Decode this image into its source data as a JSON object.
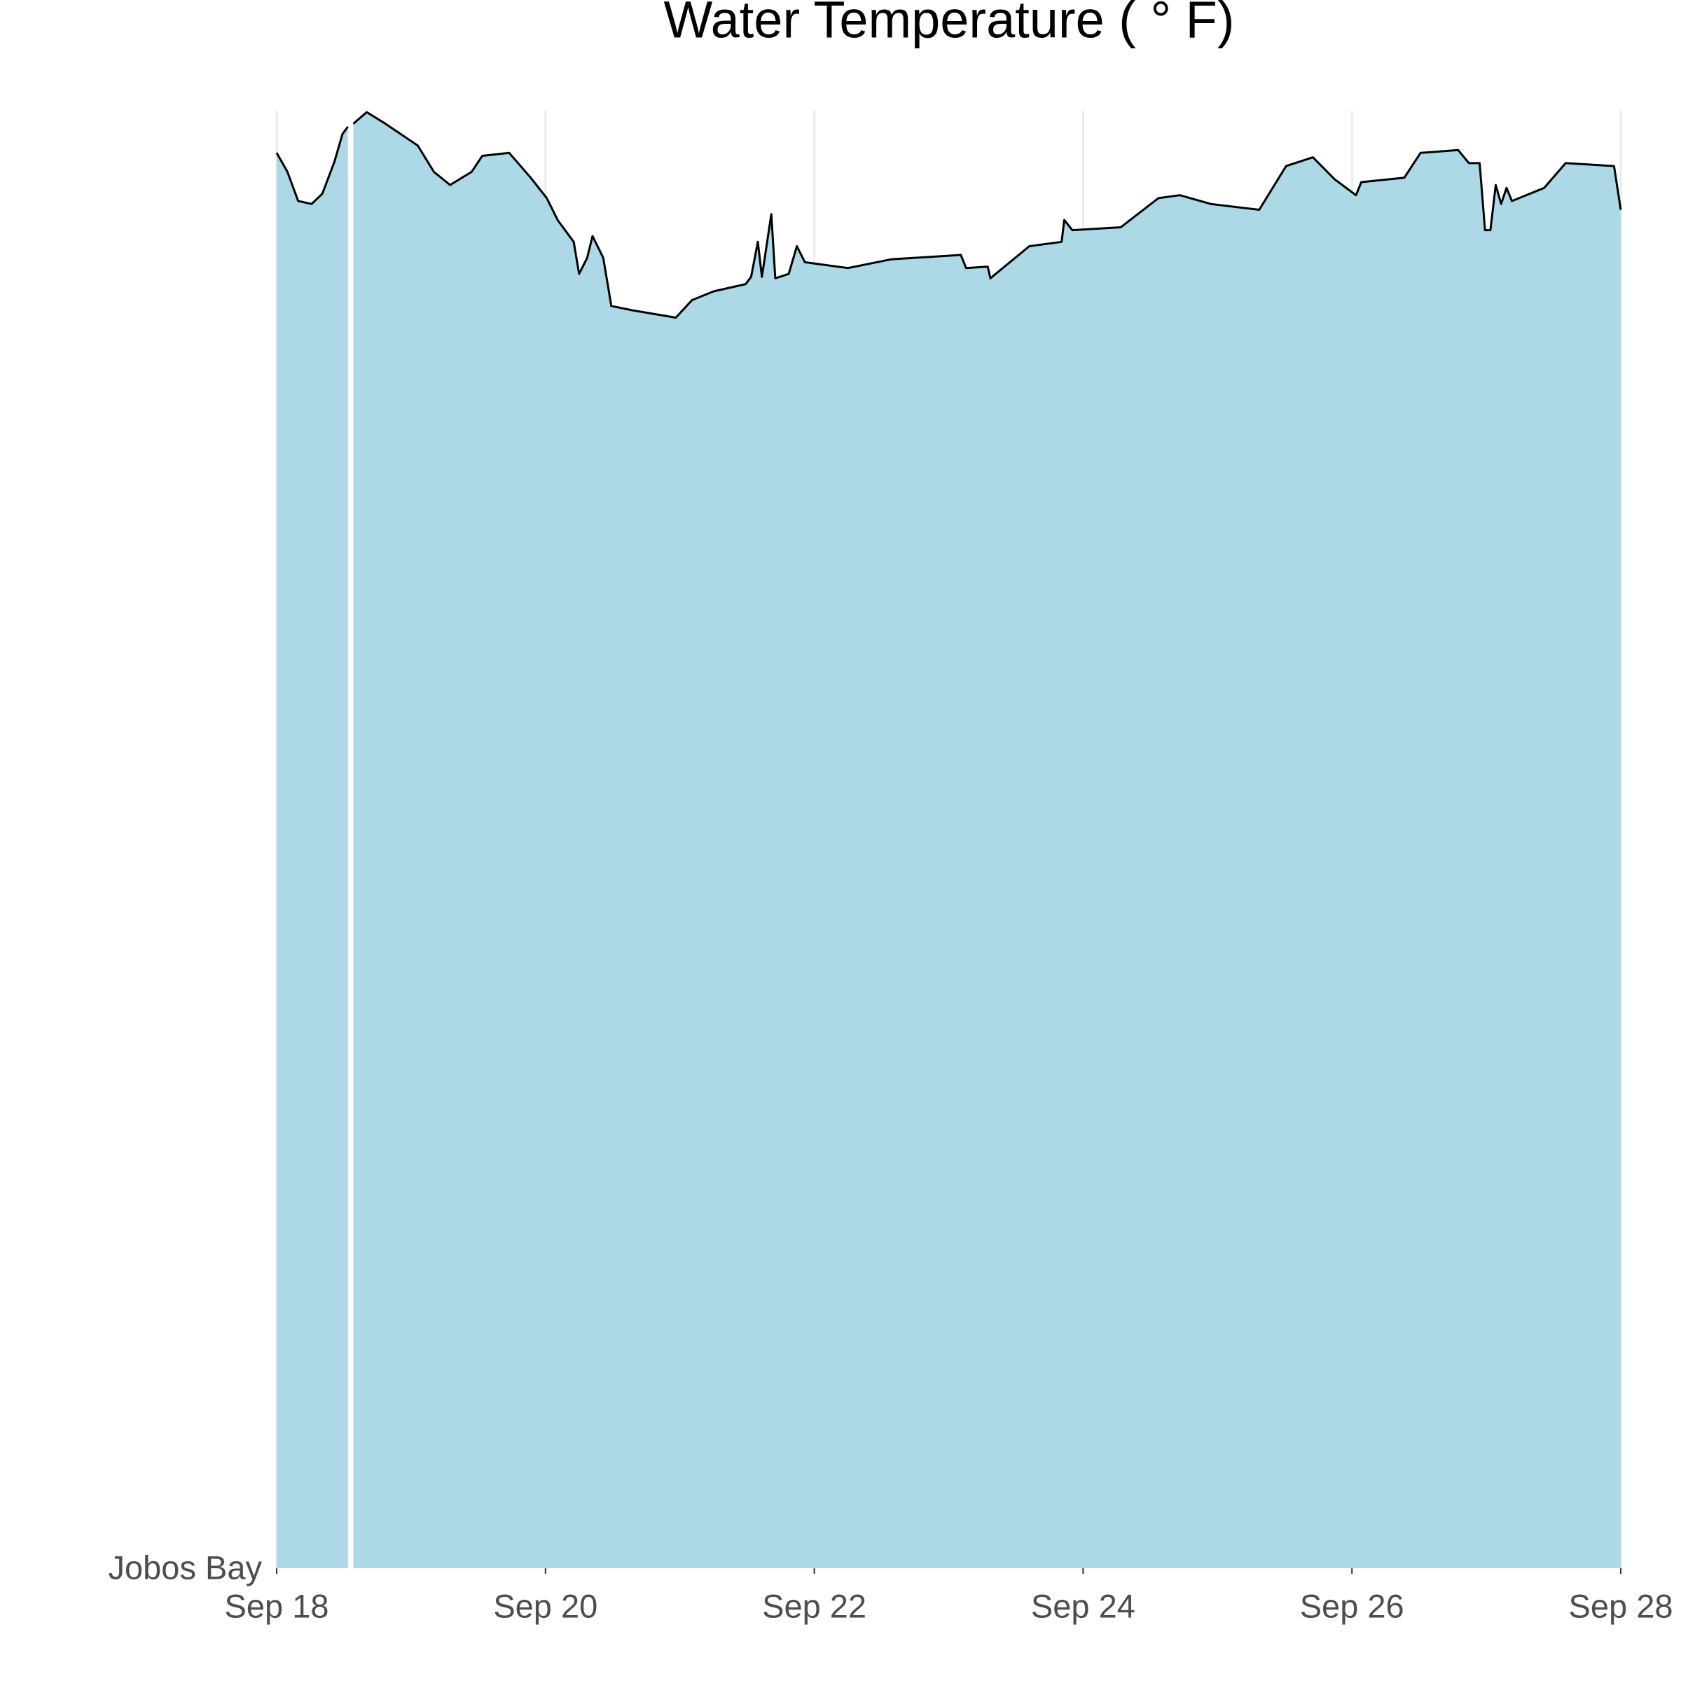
{
  "chart_data": {
    "type": "area",
    "title": "Water Temperature ( ° F)",
    "categories": [
      "Jobos Bay"
    ],
    "x": [
      18.0,
      18.08,
      18.16,
      18.26,
      18.34,
      18.43,
      18.49,
      18.53,
      18.55,
      18.57,
      18.67,
      18.81,
      19.05,
      19.17,
      19.29,
      19.45,
      19.53,
      19.73,
      19.89,
      20.01,
      20.09,
      20.21,
      20.25,
      20.31,
      20.35,
      20.43,
      20.49,
      20.65,
      20.97,
      21.09,
      21.25,
      21.49,
      21.53,
      21.58,
      21.61,
      21.68,
      21.71,
      21.81,
      21.87,
      21.93,
      22.25,
      22.57,
      23.09,
      23.13,
      23.29,
      23.31,
      23.6,
      23.84,
      23.86,
      23.92,
      24.28,
      24.56,
      24.72,
      24.95,
      25.31,
      25.51,
      25.71,
      25.87,
      26.03,
      26.07,
      26.39,
      26.51,
      26.79,
      26.87,
      26.95,
      26.99,
      27.03,
      27.07,
      27.11,
      27.15,
      27.19,
      27.43,
      27.59,
      27.95,
      28.0
    ],
    "values": [
      97.1,
      95.8,
      93.8,
      93.6,
      94.3,
      96.5,
      98.4,
      98.9,
      null,
      99.1,
      99.9,
      99.1,
      97.6,
      95.8,
      94.9,
      95.8,
      96.9,
      97.1,
      95.4,
      94.0,
      92.5,
      91.0,
      88.8,
      89.9,
      91.4,
      89.9,
      86.6,
      86.3,
      85.8,
      87.0,
      87.6,
      88.1,
      88.6,
      91.0,
      88.6,
      92.9,
      88.5,
      88.8,
      90.7,
      89.6,
      89.2,
      89.8,
      90.1,
      89.2,
      89.3,
      88.5,
      90.7,
      91.0,
      92.5,
      91.8,
      92.0,
      94.0,
      94.2,
      93.6,
      93.2,
      96.2,
      96.8,
      95.3,
      94.2,
      95.1,
      95.4,
      97.1,
      97.3,
      96.4,
      96.4,
      91.8,
      91.8,
      94.9,
      93.6,
      94.7,
      93.8,
      94.7,
      96.4,
      96.2,
      93.2
    ],
    "color": "#add8e6",
    "line_color": "#000000",
    "xlim": [
      18,
      28
    ],
    "xticks": [
      {
        "value": 18,
        "label": "Sep 18"
      },
      {
        "value": 20,
        "label": "Sep 20"
      },
      {
        "value": 22,
        "label": "Sep 22"
      },
      {
        "value": 24,
        "label": "Sep 24"
      },
      {
        "value": 26,
        "label": "Sep 26"
      },
      {
        "value": 28,
        "label": "Sep 28"
      }
    ],
    "ylim": [
      0,
      100
    ],
    "grid": true
  }
}
